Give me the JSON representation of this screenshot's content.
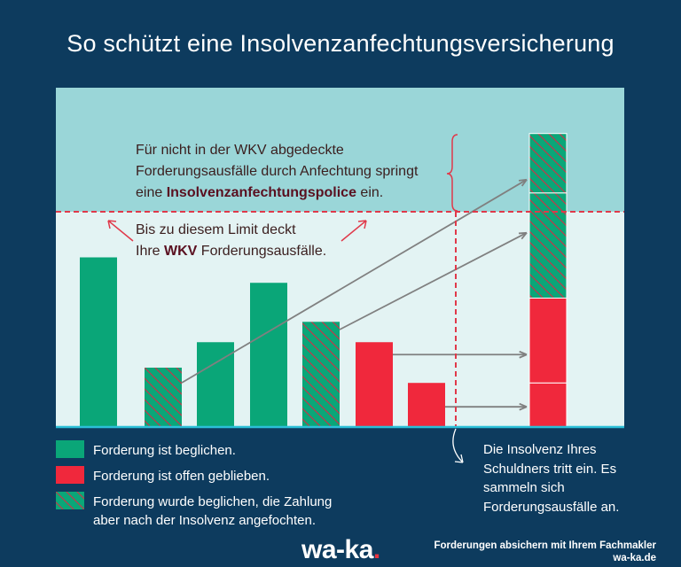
{
  "title": "So schützt eine Insolvenzanfechtungsversicherung",
  "top_note": {
    "line1": "Für nicht in der WKV abgedeckte",
    "line2": "Forderungsausfälle durch Anfechtung springt",
    "line3_prefix": "eine ",
    "line3_bold": "Insolvenzanfechtungspolice",
    "line3_suffix": " ein."
  },
  "limit_note": {
    "line1": "Bis zu diesem Limit deckt",
    "line2_prefix": "Ihre ",
    "line2_bold": "WKV",
    "line2_suffix": " Forderungsausfälle."
  },
  "legend": [
    {
      "label": "Forderung ist beglichen.",
      "style": "paid"
    },
    {
      "label": "Forderung ist offen geblieben.",
      "style": "open"
    },
    {
      "label_line1": "Forderung wurde beglichen, die Zahlung",
      "label_line2": "aber nach der Insolvenz angefochten.",
      "style": "contested"
    }
  ],
  "right_note": {
    "line1": "Die Insolvenz Ihres",
    "line2": "Schuldners tritt ein. Es",
    "line3": "sammeln sich",
    "line4": "Forderungsausfälle an."
  },
  "footer": {
    "logo": "wa-ka",
    "logo_dot": ".",
    "line1": "Forderungen absichern mit Ihrem Fachmakler",
    "line2": "wa-ka.de"
  },
  "colors": {
    "background": "#0d3b5e",
    "panel_upper": "#9ad6d8",
    "panel_lower": "#e3f3f3",
    "paid": "#0aa678",
    "open": "#f0283c",
    "limit_line": "#e0394a",
    "arrow": "#808080",
    "baseline": "#2bbfd8"
  },
  "chart_data": {
    "type": "bar",
    "bars": [
      {
        "height": 0.5,
        "style": "paid"
      },
      {
        "height": 0.175,
        "style": "contested"
      },
      {
        "height": 0.25,
        "style": "paid"
      },
      {
        "height": 0.425,
        "style": "paid"
      },
      {
        "height": 0.31,
        "style": "contested"
      },
      {
        "height": 0.25,
        "style": "open"
      },
      {
        "height": 0.13,
        "style": "open"
      }
    ],
    "stack": [
      {
        "height": 0.13,
        "style": "open"
      },
      {
        "height": 0.25,
        "style": "open"
      },
      {
        "height": 0.31,
        "style": "contested"
      },
      {
        "height": 0.175,
        "style": "contested"
      }
    ],
    "limit": 0.64,
    "max": 1.0
  }
}
